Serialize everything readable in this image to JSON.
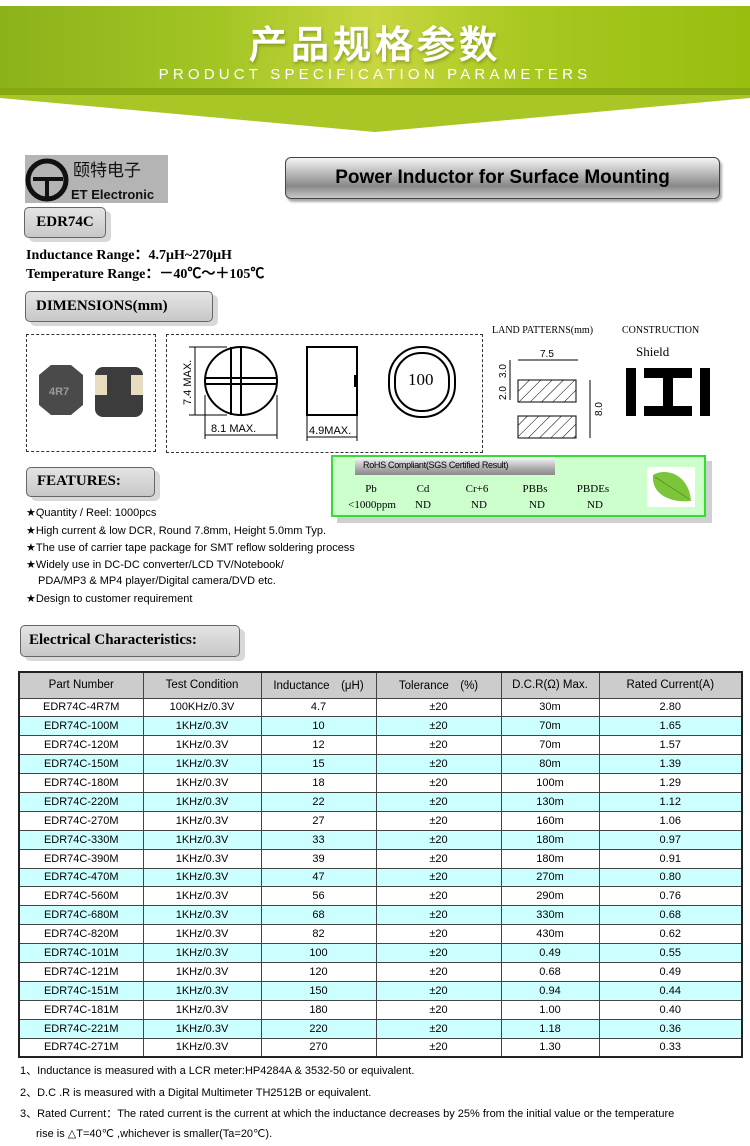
{
  "banner": {
    "title_cn": "产品规格参数",
    "title_en": "PRODUCT SPECIFICATION PARAMETERS",
    "color": "#a4c625"
  },
  "logo": {
    "name_cn": "颐特电子",
    "name_en": "ET Electronic"
  },
  "product_title": "Power Inductor for Surface Mounting",
  "model": "EDR74C",
  "inductance_range": "Inductance Range：4.7μH~270μH",
  "temperature_range": "Temperature Range：－40℃～＋105℃",
  "dimensions": {
    "heading": "DIMENSIONS(mm)",
    "photo_marking": "4R7",
    "height_label": "7.4 MAX.",
    "width_label": "8.1 MAX.",
    "depth_label": "4.9MAX.",
    "top_marking": "100",
    "land_heading": "LAND PATTERNS(mm)",
    "land_width": "7.5",
    "land_gap1": "3.0",
    "land_gap2": "2.0",
    "land_total": "8.0",
    "construction_heading": "CONSTRUCTION",
    "construction_type": "Shield"
  },
  "rohs": {
    "title": "RoHS Compliant(SGS Certified Result)",
    "headers": [
      "Pb",
      "Cd",
      "Cr+6",
      "PBBs",
      "PBDEs"
    ],
    "values": [
      "<1000ppm",
      "ND",
      "ND",
      "ND",
      "ND"
    ],
    "color": "#ccffcc"
  },
  "features": {
    "heading": "FEATURES:",
    "items": [
      "★Quantity / Reel: 1000pcs",
      "★High current & low DCR, Round 7.8mm, Height 5.0mm Typ.",
      "★The use of carrier tape package for SMT reflow soldering process",
      "★Widely use in DC-DC converter/LCD TV/Notebook/",
      "PDA/MP3 & MP4 player/Digital camera/DVD etc.",
      "★Design to customer requirement"
    ]
  },
  "electrical": {
    "heading": "Electrical Characteristics:",
    "columns": [
      "Part Number",
      "Test Condition",
      "Inductance　(μH)",
      "Tolerance　(%)",
      "D.C.R(Ω) Max.",
      "Rated Current(A)"
    ],
    "rows": [
      [
        "EDR74C-4R7M",
        "100KHz/0.3V",
        "4.7",
        "±20",
        "30m",
        "2.80"
      ],
      [
        "EDR74C-100M",
        "1KHz/0.3V",
        "10",
        "±20",
        "70m",
        "1.65"
      ],
      [
        "EDR74C-120M",
        "1KHz/0.3V",
        "12",
        "±20",
        "70m",
        "1.57"
      ],
      [
        "EDR74C-150M",
        "1KHz/0.3V",
        "15",
        "±20",
        "80m",
        "1.39"
      ],
      [
        "EDR74C-180M",
        "1KHz/0.3V",
        "18",
        "±20",
        "100m",
        "1.29"
      ],
      [
        "EDR74C-220M",
        "1KHz/0.3V",
        "22",
        "±20",
        "130m",
        "1.12"
      ],
      [
        "EDR74C-270M",
        "1KHz/0.3V",
        "27",
        "±20",
        "160m",
        "1.06"
      ],
      [
        "EDR74C-330M",
        "1KHz/0.3V",
        "33",
        "±20",
        "180m",
        "0.97"
      ],
      [
        "EDR74C-390M",
        "1KHz/0.3V",
        "39",
        "±20",
        "180m",
        "0.91"
      ],
      [
        "EDR74C-470M",
        "1KHz/0.3V",
        "47",
        "±20",
        "270m",
        "0.80"
      ],
      [
        "EDR74C-560M",
        "1KHz/0.3V",
        "56",
        "±20",
        "290m",
        "0.76"
      ],
      [
        "EDR74C-680M",
        "1KHz/0.3V",
        "68",
        "±20",
        "330m",
        "0.68"
      ],
      [
        "EDR74C-820M",
        "1KHz/0.3V",
        "82",
        "±20",
        "430m",
        "0.62"
      ],
      [
        "EDR74C-101M",
        "1KHz/0.3V",
        "100",
        "±20",
        "0.49",
        "0.55"
      ],
      [
        "EDR74C-121M",
        "1KHz/0.3V",
        "120",
        "±20",
        "0.68",
        "0.49"
      ],
      [
        "EDR74C-151M",
        "1KHz/0.3V",
        "150",
        "±20",
        "0.94",
        "0.44"
      ],
      [
        "EDR74C-181M",
        "1KHz/0.3V",
        "180",
        "±20",
        "1.00",
        "0.40"
      ],
      [
        "EDR74C-221M",
        "1KHz/0.3V",
        "220",
        "±20",
        "1.18",
        "0.36"
      ],
      [
        "EDR74C-271M",
        "1KHz/0.3V",
        "270",
        "±20",
        "1.30",
        "0.33"
      ]
    ],
    "alt_row_color": "#ccffff"
  },
  "notes": [
    "1、Inductance is measured with a LCR meter:HP4284A & 3532-50 or equivalent.",
    "2、D.C .R is measured with a Digital Multimeter TH2512B or equivalent.",
    "3、Rated Current：The rated current is the current at which the inductance decreases by 25% from the initial value or the temperature",
    "rise is △T=40℃ ,whichever is smaller(Ta=20℃)."
  ]
}
